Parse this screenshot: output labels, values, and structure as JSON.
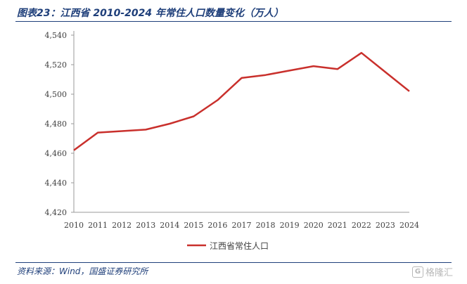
{
  "header": {
    "title": "图表23：江西省 2010-2024 年常住人口数量变化（万人）"
  },
  "footer": {
    "source": "资料来源：Wind，国盛证券研究所",
    "watermark_text": "格隆汇"
  },
  "chart_data": {
    "type": "line",
    "title": "图表23：江西省 2010-2024 年常住人口数量变化（万人）",
    "x": [
      "2010",
      "2011",
      "2012",
      "2013",
      "2014",
      "2015",
      "2016",
      "2017",
      "2018",
      "2019",
      "2020",
      "2021",
      "2022",
      "2023",
      "2024"
    ],
    "series": [
      {
        "name": "江西省常住人口",
        "values": [
          4462,
          4474,
          4475,
          4476,
          4480,
          4485,
          4496,
          4511,
          4513,
          4516,
          4519,
          4517,
          4528,
          4515,
          4502
        ],
        "color": "#c9302c"
      }
    ],
    "ylim": [
      4420,
      4540
    ],
    "yticks": [
      "4,420",
      "4,440",
      "4,460",
      "4,480",
      "4,500",
      "4,520",
      "4,540"
    ],
    "grid": false,
    "legend": "bottom-center"
  }
}
